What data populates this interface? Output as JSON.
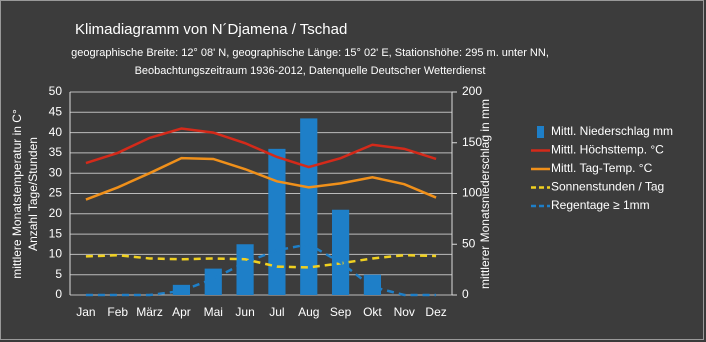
{
  "chart_data": {
    "type": "combo",
    "title": "Klimadiagramm von N´Djamena / Tschad",
    "subtitle": [
      "geographische Breite: 12° 08' N, geographische Länge: 15° 02' E, Stationshöhe: 295 m. unter NN,",
      "Beobachtungszeitraum 1936-2012, Datenquelle Deutscher Wetterdienst"
    ],
    "y_label": [
      "mittlere Monatstemperatur in C°",
      "Anzahl Tage/Stunden"
    ],
    "y2_label": "mittlerer Monatsniederschlag in mm",
    "categories": [
      "Jan",
      "Feb",
      "März",
      "Apr",
      "Mai",
      "Jun",
      "Jul",
      "Aug",
      "Sep",
      "Okt",
      "Nov",
      "Dez"
    ],
    "ylim": [
      0,
      50
    ],
    "yticks": [
      0,
      5,
      10,
      15,
      20,
      25,
      30,
      35,
      40,
      45,
      50
    ],
    "y2lim": [
      0,
      200
    ],
    "y2ticks": [
      0,
      50,
      100,
      150,
      200
    ],
    "grid": true,
    "legend": "right",
    "series": [
      {
        "name": "Mittl. Niederschlag mm",
        "type": "bar",
        "axis": "y2",
        "color": "#1e7fc8",
        "values": [
          0,
          0,
          0,
          10,
          26,
          50,
          144,
          174,
          84,
          20,
          0,
          0
        ]
      },
      {
        "name": "Mittl. Höchsttemp. °C",
        "type": "line",
        "color": "#d42a1a",
        "values": [
          32.5,
          35,
          38.7,
          41,
          40,
          37.4,
          34,
          31.5,
          33.7,
          37,
          36,
          33.5
        ]
      },
      {
        "name": "Mittl. Tag-Temp. °C",
        "type": "line",
        "color": "#f0901a",
        "values": [
          23.5,
          26.5,
          30,
          33.7,
          33.5,
          31,
          28,
          26.5,
          27.5,
          29,
          27.3,
          24
        ]
      },
      {
        "name": "Sonnenstunden / Tag",
        "type": "line",
        "dashed": true,
        "color": "#f0d020",
        "values": [
          9.5,
          9.8,
          9,
          8.8,
          9,
          8.8,
          7,
          6.8,
          7.8,
          9,
          9.8,
          9.6
        ]
      },
      {
        "name": "Regentage ≥ 1mm",
        "type": "line",
        "dashed": true,
        "color": "#1e7fc8",
        "values": [
          0,
          0,
          0,
          1,
          4,
          8,
          11,
          12.5,
          8,
          2,
          0,
          0
        ]
      }
    ]
  }
}
